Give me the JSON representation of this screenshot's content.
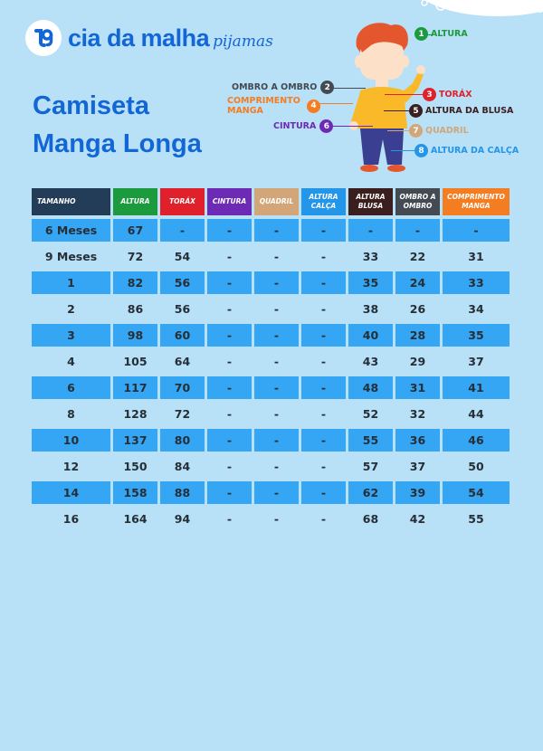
{
  "brand": {
    "name": "cia da malha",
    "sub": "pijamas"
  },
  "title": {
    "line1": "Camiseta",
    "line2": "Manga Longa"
  },
  "legend": [
    {
      "n": "1",
      "label": "ALTURA",
      "color": "#1c9a3e"
    },
    {
      "n": "2",
      "label": "OMBRO A OMBRO",
      "color": "#434a52"
    },
    {
      "n": "3",
      "label": "TORÁX",
      "color": "#e0202a"
    },
    {
      "n": "4",
      "label": "COMPRIMENTO MANGA",
      "color": "#f47c21"
    },
    {
      "n": "5",
      "label": "ALTURA DA BLUSA",
      "color": "#3b1e1e"
    },
    {
      "n": "6",
      "label": "CINTURA",
      "color": "#6d2bb5"
    },
    {
      "n": "7",
      "label": "QUADRIL",
      "color": "#d2a679"
    },
    {
      "n": "8",
      "label": "ALTURA DA CALÇA",
      "color": "#2396ea"
    }
  ],
  "table": {
    "headers": [
      {
        "label": "TAMANHO",
        "color": "#233d59"
      },
      {
        "label": "ALTURA",
        "color": "#1c9a3e"
      },
      {
        "label": "TORÁX",
        "color": "#e0202a"
      },
      {
        "label": "CINTURA",
        "color": "#6d2bb5"
      },
      {
        "label": "QUADRIL",
        "color": "#d2a679"
      },
      {
        "label": "ALTURA CALÇA",
        "color": "#2396ea"
      },
      {
        "label": "ALTURA BLUSA",
        "color": "#3b1e1e"
      },
      {
        "label": "OMBRO A OMBRO",
        "color": "#434a52"
      },
      {
        "label": "COMPRIMENTO MANGA",
        "color": "#f47c21"
      }
    ],
    "rows": [
      [
        "6 Meses",
        "67",
        "-",
        "-",
        "-",
        "-",
        "-",
        "-",
        "-"
      ],
      [
        "9 Meses",
        "72",
        "54",
        "-",
        "-",
        "-",
        "33",
        "22",
        "31"
      ],
      [
        "1",
        "82",
        "56",
        "-",
        "-",
        "-",
        "35",
        "24",
        "33"
      ],
      [
        "2",
        "86",
        "56",
        "-",
        "-",
        "-",
        "38",
        "26",
        "34"
      ],
      [
        "3",
        "98",
        "60",
        "-",
        "-",
        "-",
        "40",
        "28",
        "35"
      ],
      [
        "4",
        "105",
        "64",
        "-",
        "-",
        "-",
        "43",
        "29",
        "37"
      ],
      [
        "6",
        "117",
        "70",
        "-",
        "-",
        "-",
        "48",
        "31",
        "41"
      ],
      [
        "8",
        "128",
        "72",
        "-",
        "-",
        "-",
        "52",
        "32",
        "44"
      ],
      [
        "10",
        "137",
        "80",
        "-",
        "-",
        "-",
        "55",
        "36",
        "46"
      ],
      [
        "12",
        "150",
        "84",
        "-",
        "-",
        "-",
        "57",
        "37",
        "50"
      ],
      [
        "14",
        "158",
        "88",
        "-",
        "-",
        "-",
        "62",
        "39",
        "54"
      ],
      [
        "16",
        "164",
        "94",
        "-",
        "-",
        "-",
        "68",
        "42",
        "55"
      ]
    ]
  }
}
